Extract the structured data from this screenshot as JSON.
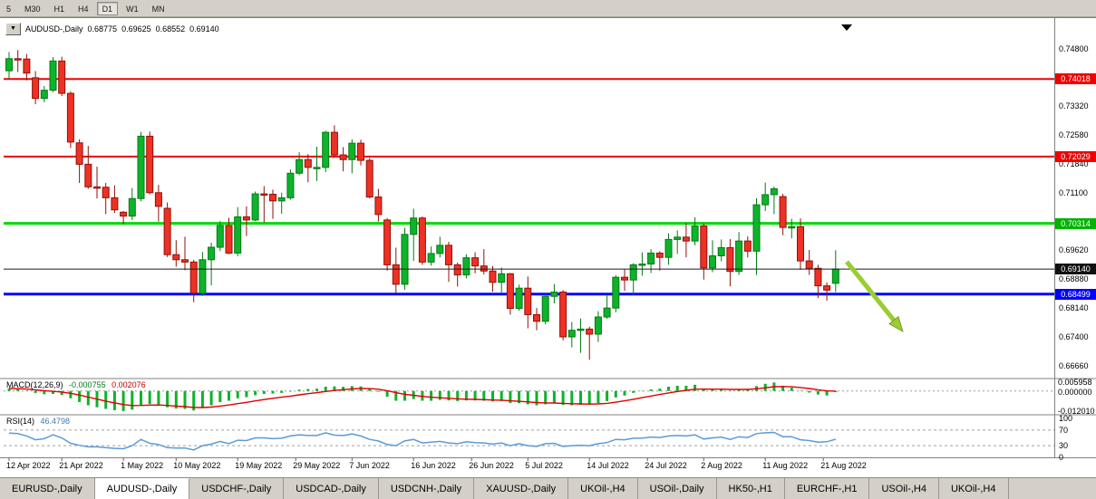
{
  "colors": {
    "up": "#0db32a",
    "up_border": "#067a18",
    "down": "#ee3124",
    "down_border": "#8f120b",
    "red": "#f00000",
    "green": "#00d800",
    "blue": "#0000ff",
    "bid": "#1a1a1a",
    "macd_hist": "#0db32a",
    "macd_signal": "#e00000",
    "rsi": "#5b9bd5",
    "arrow": "#9acd32",
    "arrow_border": "#6b8e23",
    "badge_red": "#f00000",
    "badge_green": "#00b400",
    "badge_blue": "#0000ff",
    "badge_black": "#101010"
  },
  "toolbar": {
    "timeframes": [
      "5",
      "M30",
      "H1",
      "H4",
      "D1",
      "W1",
      "MN"
    ],
    "active": "D1"
  },
  "chart": {
    "title": {
      "dropdown": "▼",
      "symbol": "AUDUSD-,Daily",
      "o": "0.68775",
      "h": "0.69625",
      "l": "0.68552",
      "c": "0.69140"
    }
  },
  "tabs": [
    {
      "label": "EURUSD-,Daily",
      "active": false
    },
    {
      "label": "AUDUSD-,Daily",
      "active": true
    },
    {
      "label": "USDCHF-,Daily",
      "active": false
    },
    {
      "label": "USDCAD-,Daily",
      "active": false
    },
    {
      "label": "USDCNH-,Daily",
      "active": false
    },
    {
      "label": "XAUUSD-,Daily",
      "active": false
    },
    {
      "label": "UKOil-,H4",
      "active": false
    },
    {
      "label": "USOil-,Daily",
      "active": false
    },
    {
      "label": "HK50-,H1",
      "active": false
    },
    {
      "label": "EURCHF-,H1",
      "active": false
    },
    {
      "label": "USOil-,H4",
      "active": false
    },
    {
      "label": "UKOil-,H4",
      "active": false
    }
  ],
  "chart_data": {
    "type": "candlestick",
    "symbol": "AUDUSD",
    "timeframe": "Daily",
    "ohlc_display": {
      "open": "0.68775",
      "high": "0.69625",
      "low": "0.68552",
      "close": "0.69140"
    },
    "bid": 0.6914,
    "candles": [
      [
        0.7423,
        0.7471,
        0.7401,
        0.7454
      ],
      [
        0.7454,
        0.7476,
        0.742,
        0.7453
      ],
      [
        0.7453,
        0.7466,
        0.7398,
        0.7417
      ],
      [
        0.7405,
        0.7422,
        0.7337,
        0.7352
      ],
      [
        0.7352,
        0.7384,
        0.7342,
        0.7373
      ],
      [
        0.7373,
        0.7458,
        0.7368,
        0.7448
      ],
      [
        0.7448,
        0.7459,
        0.7358,
        0.7365
      ],
      [
        0.7365,
        0.737,
        0.7225,
        0.724
      ],
      [
        0.7238,
        0.7247,
        0.7135,
        0.7183
      ],
      [
        0.7183,
        0.723,
        0.712,
        0.7125
      ],
      [
        0.7125,
        0.7177,
        0.7095,
        0.7124
      ],
      [
        0.7124,
        0.7135,
        0.7055,
        0.7097
      ],
      [
        0.7097,
        0.7129,
        0.7058,
        0.7066
      ],
      [
        0.706,
        0.7063,
        0.7029,
        0.705
      ],
      [
        0.705,
        0.7122,
        0.704,
        0.7095
      ],
      [
        0.7095,
        0.7266,
        0.7088,
        0.7255
      ],
      [
        0.7255,
        0.7267,
        0.7106,
        0.711
      ],
      [
        0.711,
        0.713,
        0.7036,
        0.7075
      ],
      [
        0.707,
        0.7085,
        0.6945,
        0.6951
      ],
      [
        0.6951,
        0.6988,
        0.692,
        0.6938
      ],
      [
        0.6938,
        0.6997,
        0.6911,
        0.6932
      ],
      [
        0.6932,
        0.6938,
        0.6829,
        0.6852
      ],
      [
        0.6852,
        0.6958,
        0.6845,
        0.6938
      ],
      [
        0.6938,
        0.6982,
        0.6872,
        0.697
      ],
      [
        0.697,
        0.7037,
        0.696,
        0.7026
      ],
      [
        0.7026,
        0.7046,
        0.6952,
        0.6955
      ],
      [
        0.6955,
        0.7073,
        0.6947,
        0.7048
      ],
      [
        0.7048,
        0.7075,
        0.6999,
        0.704
      ],
      [
        0.704,
        0.7113,
        0.7037,
        0.7107
      ],
      [
        0.7107,
        0.7127,
        0.7034,
        0.7106
      ],
      [
        0.7106,
        0.7118,
        0.7043,
        0.7089
      ],
      [
        0.7089,
        0.711,
        0.7056,
        0.7097
      ],
      [
        0.7097,
        0.717,
        0.7092,
        0.716
      ],
      [
        0.716,
        0.7214,
        0.7155,
        0.7195
      ],
      [
        0.7195,
        0.7209,
        0.7137,
        0.7175
      ],
      [
        0.7175,
        0.7228,
        0.714,
        0.7175
      ],
      [
        0.7175,
        0.7269,
        0.7163,
        0.7265
      ],
      [
        0.7265,
        0.7283,
        0.72,
        0.7207
      ],
      [
        0.7207,
        0.7227,
        0.7165,
        0.7195
      ],
      [
        0.7195,
        0.7247,
        0.716,
        0.7237
      ],
      [
        0.7237,
        0.7246,
        0.718,
        0.7193
      ],
      [
        0.7193,
        0.7199,
        0.7095,
        0.7099
      ],
      [
        0.7099,
        0.712,
        0.7036,
        0.7054
      ],
      [
        0.704,
        0.7045,
        0.691,
        0.6925
      ],
      [
        0.6925,
        0.6969,
        0.685,
        0.6875
      ],
      [
        0.6875,
        0.702,
        0.6861,
        0.7003
      ],
      [
        0.7003,
        0.7069,
        0.6935,
        0.7045
      ],
      [
        0.7045,
        0.7049,
        0.6925,
        0.6932
      ],
      [
        0.6932,
        0.6972,
        0.6923,
        0.6954
      ],
      [
        0.6954,
        0.6997,
        0.6944,
        0.6975
      ],
      [
        0.6975,
        0.6984,
        0.6881,
        0.6925
      ],
      [
        0.6925,
        0.6931,
        0.6869,
        0.6899
      ],
      [
        0.6899,
        0.6952,
        0.689,
        0.6943
      ],
      [
        0.6943,
        0.6957,
        0.6903,
        0.6922
      ],
      [
        0.6922,
        0.6965,
        0.69,
        0.6909
      ],
      [
        0.6909,
        0.6922,
        0.6856,
        0.688
      ],
      [
        0.688,
        0.6918,
        0.6851,
        0.6902
      ],
      [
        0.6902,
        0.6904,
        0.6797,
        0.6813
      ],
      [
        0.6813,
        0.6874,
        0.6807,
        0.6865
      ],
      [
        0.6865,
        0.6895,
        0.6762,
        0.6797
      ],
      [
        0.6797,
        0.6814,
        0.6757,
        0.678
      ],
      [
        0.678,
        0.6851,
        0.6772,
        0.6844
      ],
      [
        0.6844,
        0.6876,
        0.6826,
        0.6855
      ],
      [
        0.6855,
        0.686,
        0.6731,
        0.674
      ],
      [
        0.674,
        0.6778,
        0.6713,
        0.6757
      ],
      [
        0.6757,
        0.6787,
        0.6699,
        0.676
      ],
      [
        0.676,
        0.6766,
        0.6681,
        0.6747
      ],
      [
        0.6747,
        0.6806,
        0.6727,
        0.6791
      ],
      [
        0.6791,
        0.6849,
        0.6786,
        0.6814
      ],
      [
        0.6814,
        0.6898,
        0.6803,
        0.6893
      ],
      [
        0.6893,
        0.6913,
        0.6858,
        0.6886
      ],
      [
        0.6886,
        0.6929,
        0.6846,
        0.6925
      ],
      [
        0.6925,
        0.6957,
        0.6897,
        0.6927
      ],
      [
        0.6927,
        0.6965,
        0.6904,
        0.6955
      ],
      [
        0.6955,
        0.696,
        0.691,
        0.6944
      ],
      [
        0.6944,
        0.7006,
        0.6925,
        0.699
      ],
      [
        0.699,
        0.7013,
        0.6953,
        0.6996
      ],
      [
        0.6996,
        0.7032,
        0.6944,
        0.6986
      ],
      [
        0.6986,
        0.7047,
        0.6975,
        0.7025
      ],
      [
        0.7025,
        0.7031,
        0.6887,
        0.6917
      ],
      [
        0.6917,
        0.6988,
        0.6906,
        0.6948
      ],
      [
        0.6948,
        0.699,
        0.6934,
        0.6969
      ],
      [
        0.6969,
        0.6991,
        0.687,
        0.6908
      ],
      [
        0.6908,
        0.7009,
        0.6899,
        0.6986
      ],
      [
        0.6986,
        0.6998,
        0.6944,
        0.696
      ],
      [
        0.696,
        0.7096,
        0.6899,
        0.7079
      ],
      [
        0.7079,
        0.7136,
        0.7063,
        0.7105
      ],
      [
        0.7105,
        0.7126,
        0.7055,
        0.712
      ],
      [
        0.71,
        0.7107,
        0.7001,
        0.7021
      ],
      [
        0.7021,
        0.7043,
        0.6993,
        0.7023
      ],
      [
        0.7023,
        0.7044,
        0.6912,
        0.6935
      ],
      [
        0.6935,
        0.6963,
        0.6899,
        0.6916
      ],
      [
        0.6916,
        0.6925,
        0.684,
        0.6871
      ],
      [
        0.6871,
        0.688,
        0.6833,
        0.686
      ],
      [
        0.68775,
        0.69625,
        0.68552,
        0.6914
      ]
    ],
    "hlines": [
      {
        "price": 0.74018,
        "label": "0.74018",
        "color": "red",
        "width": 2
      },
      {
        "price": 0.72029,
        "label": "0.72029",
        "color": "red",
        "width": 2
      },
      {
        "price": 0.70314,
        "label": "0.70314",
        "color": "green",
        "width": 3
      },
      {
        "price": 0.68499,
        "label": "0.68499",
        "color": "blue",
        "width": 3
      }
    ],
    "badges": [
      {
        "text": "0.74018",
        "v": 0.74018,
        "color": "red"
      },
      {
        "text": "0.72029",
        "v": 0.72029,
        "color": "red"
      },
      {
        "text": "0.70314",
        "v": 0.70314,
        "color": "green"
      },
      {
        "text": "0.69140",
        "v": 0.6914,
        "color": "black"
      },
      {
        "text": "0.68499",
        "v": 0.68499,
        "color": "blue"
      }
    ],
    "price_ticks": [
      {
        "text": "0.74800",
        "v": 0.748
      },
      {
        "text": "0.73320",
        "v": 0.7332
      },
      {
        "text": "0.72580",
        "v": 0.7258
      },
      {
        "text": "0.71840",
        "v": 0.7184
      },
      {
        "text": "0.71100",
        "v": 0.711
      },
      {
        "text": "0.69620",
        "v": 0.6962
      },
      {
        "text": "0.68880",
        "v": 0.6888
      },
      {
        "text": "0.68140",
        "v": 0.6814
      },
      {
        "text": "0.67400",
        "v": 0.674
      },
      {
        "text": "0.66660",
        "v": 0.6666
      }
    ],
    "dates": [
      {
        "text": "12 Apr 2022",
        "i": 0
      },
      {
        "text": "21 Apr 2022",
        "i": 6
      },
      {
        "text": "1 May 2022",
        "i": 13
      },
      {
        "text": "10 May 2022",
        "i": 19
      },
      {
        "text": "19 May 2022",
        "i": 26
      },
      {
        "text": "29 May 2022",
        "i": 32.6
      },
      {
        "text": "7 Jun 2022",
        "i": 39
      },
      {
        "text": "16 Jun 2022",
        "i": 46
      },
      {
        "text": "26 Jun 2022",
        "i": 52.6
      },
      {
        "text": "5 Jul 2022",
        "i": 59
      },
      {
        "text": "14 Jul 2022",
        "i": 66
      },
      {
        "text": "24 Jul 2022",
        "i": 72.6
      },
      {
        "text": "2 Aug 2022",
        "i": 79
      },
      {
        "text": "11 Aug 2022",
        "i": 86
      },
      {
        "text": "21 Aug 2022",
        "i": 92.6
      }
    ],
    "macd": {
      "label": "MACD(12,26,9)",
      "value_main": "-0.000755",
      "value_signal": "0.002076",
      "scale": [
        {
          "text": "0.005958",
          "v": 0.005958
        },
        {
          "text": "0.000000",
          "v": 0
        },
        {
          "text": "-0.012010",
          "v": -0.01201
        }
      ],
      "main": [
        0.0015,
        0.001,
        0.0002,
        -0.0012,
        -0.002,
        -0.0018,
        -0.0024,
        -0.0045,
        -0.0068,
        -0.0088,
        -0.01,
        -0.011,
        -0.0118,
        -0.0123,
        -0.0115,
        -0.0085,
        -0.008,
        -0.0082,
        -0.01,
        -0.0108,
        -0.011,
        -0.012,
        -0.0105,
        -0.0088,
        -0.0068,
        -0.006,
        -0.0045,
        -0.0038,
        -0.0026,
        -0.0018,
        -0.0016,
        -0.0012,
        -0.0004,
        0.0008,
        0.0012,
        0.0014,
        0.0026,
        0.0028,
        0.0026,
        0.003,
        0.0028,
        0.0012,
        -0.0005,
        -0.0035,
        -0.006,
        -0.006,
        -0.005,
        -0.006,
        -0.006,
        -0.0055,
        -0.0058,
        -0.0062,
        -0.0058,
        -0.0058,
        -0.006,
        -0.0064,
        -0.0062,
        -0.0074,
        -0.0075,
        -0.0082,
        -0.0088,
        -0.0082,
        -0.0075,
        -0.0085,
        -0.0088,
        -0.0085,
        -0.0085,
        -0.0075,
        -0.0062,
        -0.004,
        -0.0028,
        -0.0012,
        -0.0002,
        0.001,
        0.0014,
        0.0026,
        0.0032,
        0.0032,
        0.0038,
        0.0015,
        0.001,
        0.0012,
        0.0002,
        0.001,
        0.0008,
        0.003,
        0.0044,
        0.0052,
        0.0032,
        0.002,
        0.0002,
        -0.001,
        -0.0022,
        -0.0028,
        -0.000755
      ]
    },
    "rsi": {
      "label": "RSI(14)",
      "value": "46.4798",
      "levels": [
        70,
        30
      ],
      "scale": [
        {
          "text": "100",
          "v": 100
        },
        {
          "text": "70",
          "v": 70
        },
        {
          "text": "30",
          "v": 30
        },
        {
          "text": "0",
          "v": 0
        }
      ],
      "series": [
        62,
        61,
        55,
        45,
        48,
        58,
        50,
        36,
        31,
        27,
        27,
        25,
        23,
        22,
        30,
        46,
        36,
        33,
        25,
        24,
        24,
        19,
        30,
        34,
        41,
        35,
        44,
        43,
        50,
        50,
        48,
        49,
        55,
        58,
        56,
        56,
        63,
        57,
        56,
        60,
        55,
        46,
        42,
        33,
        30,
        42,
        46,
        37,
        39,
        41,
        37,
        35,
        40,
        38,
        37,
        34,
        37,
        30,
        35,
        30,
        28,
        35,
        36,
        28,
        30,
        31,
        30,
        35,
        38,
        46,
        45,
        49,
        49,
        52,
        51,
        55,
        56,
        55,
        58,
        47,
        50,
        52,
        46,
        53,
        51,
        61,
        63,
        64,
        53,
        53,
        45,
        43,
        39,
        40,
        46.4798
      ]
    },
    "arrow": {
      "from": [
        934,
        289
      ],
      "to": [
        996,
        366
      ]
    }
  }
}
